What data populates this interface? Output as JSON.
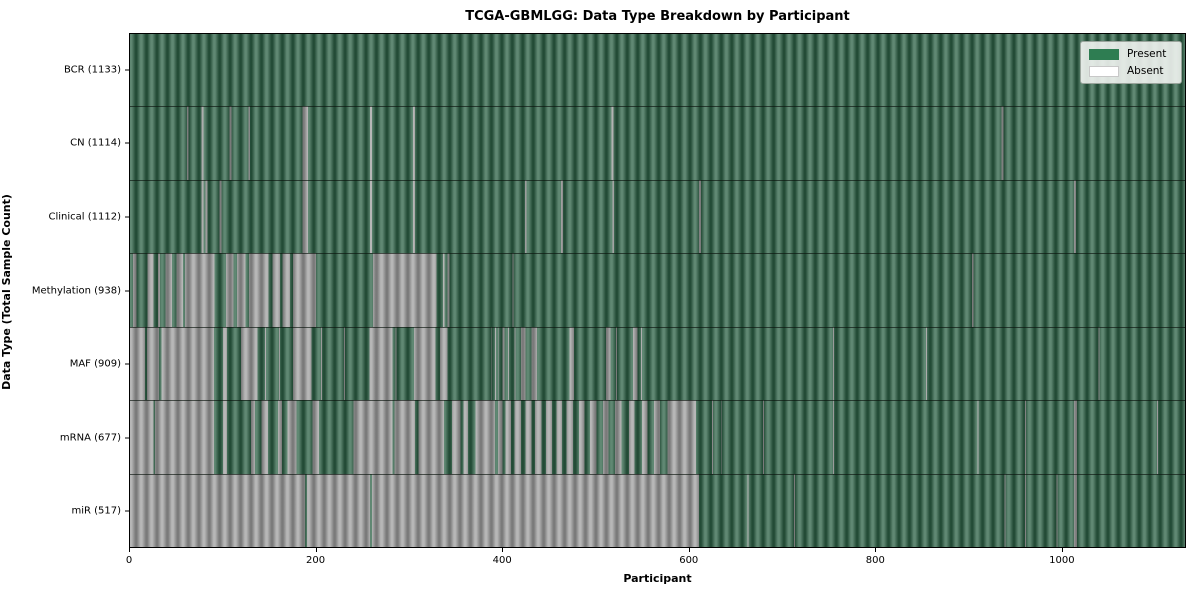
{
  "title": "TCGA-GBMLGG: Data Type Breakdown by Participant",
  "xlabel": "Participant",
  "ylabel": "Data Type (Total Sample Count)",
  "legend": {
    "present_label": "Present",
    "absent_label": "Absent",
    "present_color": "#2e7d52",
    "absent_color": "#ffffff"
  },
  "chart_data": {
    "type": "heatmap",
    "title": "TCGA-GBMLGG: Data Type Breakdown by Participant",
    "xlabel": "Participant",
    "ylabel": "Data Type (Total Sample Count)",
    "n_participants": 1133,
    "x_ticks": [
      0,
      200,
      400,
      600,
      800,
      1000
    ],
    "xlim": [
      0,
      1133
    ],
    "grid": false,
    "legend_position": "upper right",
    "colors": {
      "present_fill": "#2e6347",
      "absent_fill": "#a0a0a0",
      "legend_present": "#2e7d52",
      "legend_absent": "#ffffff"
    },
    "rows": [
      {
        "key": "BCR",
        "label": "BCR (1133)",
        "present_count": 1133,
        "absent_runs": []
      },
      {
        "key": "CN",
        "label": "CN (1114)",
        "present_count": 1114,
        "absent_runs": [
          [
            61,
            63
          ],
          [
            77,
            79
          ],
          [
            107,
            109
          ],
          [
            127,
            129
          ],
          [
            185,
            191
          ],
          [
            258,
            260
          ],
          [
            304,
            306
          ],
          [
            517,
            519
          ],
          [
            936,
            938
          ]
        ]
      },
      {
        "key": "Clinical",
        "label": "Clinical (1112)",
        "present_count": 1112,
        "absent_runs": [
          [
            77,
            79
          ],
          [
            81,
            83
          ],
          [
            96,
            98
          ],
          [
            185,
            191
          ],
          [
            258,
            260
          ],
          [
            304,
            306
          ],
          [
            424,
            426
          ],
          [
            463,
            465
          ],
          [
            518,
            520
          ],
          [
            611,
            613
          ],
          [
            1014,
            1016
          ]
        ]
      },
      {
        "key": "Methylation",
        "label": "Methylation (938)",
        "present_count": 938,
        "absent_runs": [
          [
            3,
            7
          ],
          [
            19,
            25
          ],
          [
            30,
            32
          ],
          [
            38,
            45
          ],
          [
            50,
            57
          ],
          [
            59,
            91
          ],
          [
            103,
            111
          ],
          [
            115,
            124
          ],
          [
            128,
            149
          ],
          [
            153,
            161
          ],
          [
            164,
            172
          ],
          [
            175,
            200
          ],
          [
            261,
            329
          ],
          [
            336,
            338
          ],
          [
            341,
            343
          ],
          [
            411,
            412
          ],
          [
            904,
            906
          ]
        ]
      },
      {
        "key": "MAF",
        "label": "MAF (909)",
        "present_count": 909,
        "absent_runs": [
          [
            0,
            16
          ],
          [
            18,
            31
          ],
          [
            34,
            90
          ],
          [
            100,
            104
          ],
          [
            119,
            137
          ],
          [
            145,
            146
          ],
          [
            160,
            161
          ],
          [
            175,
            195
          ],
          [
            205,
            206
          ],
          [
            230,
            231
          ],
          [
            257,
            282
          ],
          [
            285,
            286
          ],
          [
            305,
            328
          ],
          [
            333,
            341
          ],
          [
            388,
            389
          ],
          [
            392,
            393
          ],
          [
            395,
            396
          ],
          [
            400,
            402
          ],
          [
            406,
            407
          ],
          [
            413,
            414
          ],
          [
            420,
            425
          ],
          [
            431,
            437
          ],
          [
            472,
            477
          ],
          [
            511,
            516
          ],
          [
            522,
            523
          ],
          [
            540,
            545
          ],
          [
            549,
            550
          ],
          [
            755,
            756
          ],
          [
            855,
            856
          ],
          [
            1040,
            1041
          ]
        ]
      },
      {
        "key": "mRNA",
        "label": "mRNA (677)",
        "present_count": 677,
        "absent_runs": [
          [
            0,
            25
          ],
          [
            27,
            90
          ],
          [
            100,
            104
          ],
          [
            130,
            134
          ],
          [
            141,
            148
          ],
          [
            159,
            163
          ],
          [
            169,
            179
          ],
          [
            196,
            203
          ],
          [
            240,
            282
          ],
          [
            284,
            306
          ],
          [
            310,
            337
          ],
          [
            346,
            355
          ],
          [
            358,
            363
          ],
          [
            371,
            392
          ],
          [
            395,
            400
          ],
          [
            403,
            409
          ],
          [
            413,
            420
          ],
          [
            425,
            431
          ],
          [
            435,
            442
          ],
          [
            447,
            453
          ],
          [
            458,
            464
          ],
          [
            469,
            476
          ],
          [
            482,
            488
          ],
          [
            494,
            501
          ],
          [
            508,
            514
          ],
          [
            521,
            528
          ],
          [
            536,
            542
          ],
          [
            550,
            556
          ],
          [
            563,
            569
          ],
          [
            577,
            608
          ],
          [
            625,
            626
          ],
          [
            635,
            636
          ],
          [
            680,
            681
          ],
          [
            755,
            756
          ],
          [
            910,
            911
          ],
          [
            961,
            962
          ],
          [
            1014,
            1017
          ],
          [
            1103,
            1104
          ]
        ]
      },
      {
        "key": "miR",
        "label": "miR (517)",
        "present_count": 517,
        "absent_runs": [
          [
            0,
            188
          ],
          [
            190,
            258
          ],
          [
            260,
            611
          ],
          [
            663,
            664
          ],
          [
            713,
            714
          ],
          [
            939,
            940
          ],
          [
            961,
            962
          ],
          [
            995,
            996
          ],
          [
            1014,
            1017
          ]
        ]
      }
    ]
  }
}
